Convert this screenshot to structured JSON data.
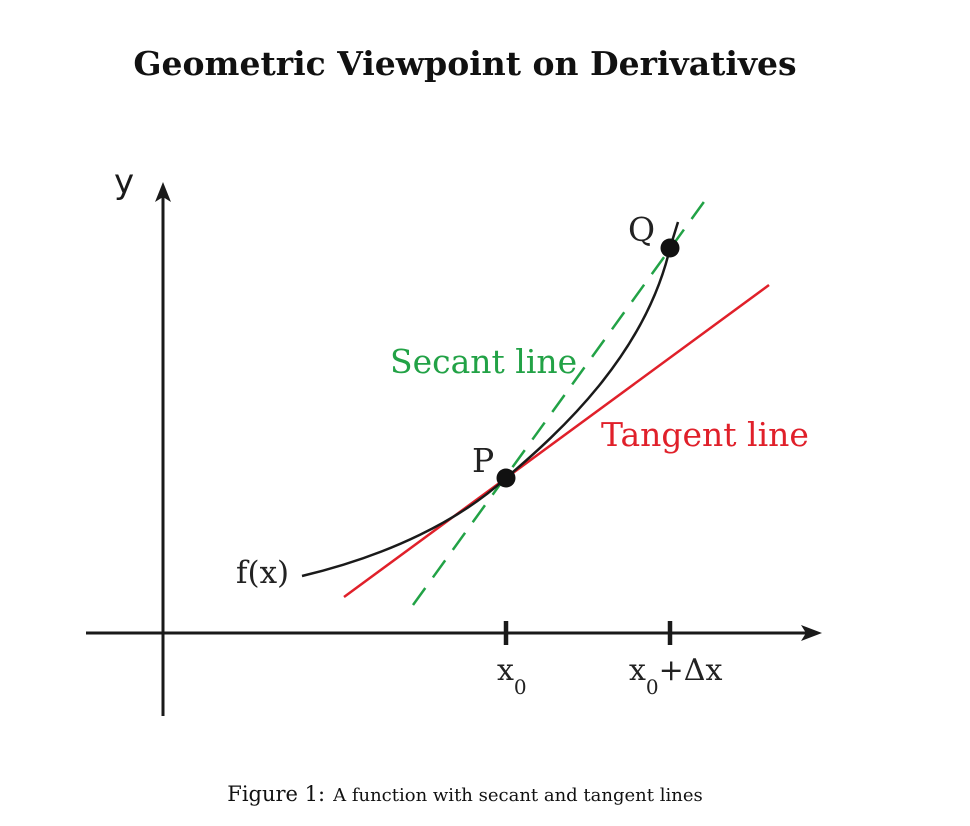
{
  "title": "Geometric Viewpoint on Derivatives",
  "axes": {
    "y_label": "y"
  },
  "labels": {
    "function": "f(x)",
    "point_p": "P",
    "point_q": "Q",
    "secant": "Secant line",
    "tangent": "Tangent line",
    "tick_x0_main": "x",
    "tick_x0_sub": "0",
    "tick_x0dx_main": "x",
    "tick_x0dx_sub": "0",
    "tick_x0dx_suffix": "+Δx"
  },
  "colors": {
    "axis": "#1a1a1a",
    "curve": "#1a1a1a",
    "secant": "#22a246",
    "tangent": "#e0202a",
    "points": "#111111"
  },
  "caption": {
    "number": "Figure 1:",
    "text": "A function with secant and tangent lines"
  }
}
